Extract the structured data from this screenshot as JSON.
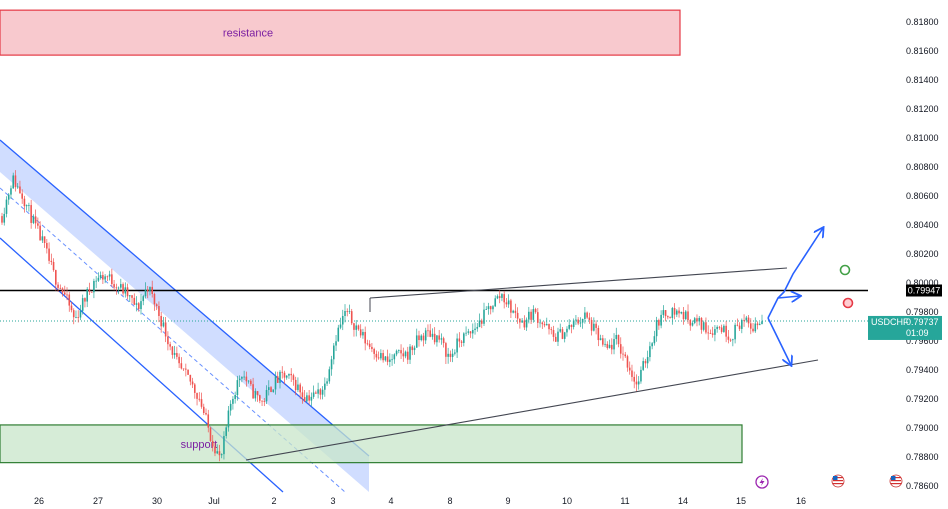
{
  "chart_data": {
    "type": "candlestick",
    "symbol": "USDCHF",
    "current_price": "0.79737",
    "countdown": "01:09",
    "key_level": "0.79947",
    "y_ticks": [
      "0.81800",
      "0.81600",
      "0.81400",
      "0.81200",
      "0.81000",
      "0.80800",
      "0.80600",
      "0.80400",
      "0.80200",
      "0.80000",
      "0.79800",
      "0.79600",
      "0.79400",
      "0.79200",
      "0.79000",
      "0.78800",
      "0.78600"
    ],
    "x_ticks": [
      "26",
      "27",
      "30",
      "Jul",
      "2",
      "3",
      "4",
      "8",
      "9",
      "10",
      "11",
      "14",
      "15",
      "16"
    ],
    "ylim": [
      0.7853,
      0.8195
    ],
    "zones": [
      {
        "label": "resistance",
        "low": 0.8157,
        "high": 0.8188,
        "color": "#f5c2c7"
      },
      {
        "label": "support",
        "low": 0.7876,
        "high": 0.7902,
        "color": "#c8e6c9"
      }
    ],
    "close_path": [
      0.8046,
      0.8072,
      0.806,
      0.8042,
      0.8026,
      0.8005,
      0.7992,
      0.7974,
      0.799,
      0.8003,
      0.8005,
      0.7999,
      0.7992,
      0.7982,
      0.7998,
      0.798,
      0.796,
      0.7941,
      0.7933,
      0.792,
      0.7895,
      0.7877,
      0.7918,
      0.7939,
      0.7925,
      0.7918,
      0.793,
      0.7936,
      0.7932,
      0.7922,
      0.7922,
      0.7929,
      0.7962,
      0.798,
      0.797,
      0.7959,
      0.7952,
      0.7945,
      0.795,
      0.7951,
      0.7961,
      0.7966,
      0.7961,
      0.7948,
      0.7961,
      0.7965,
      0.7974,
      0.7985,
      0.7992,
      0.7981,
      0.7972,
      0.798,
      0.7972,
      0.7962,
      0.7966,
      0.7972,
      0.7977,
      0.7966,
      0.7953,
      0.796,
      0.7946,
      0.7929,
      0.7951,
      0.7974,
      0.798,
      0.798,
      0.7975,
      0.7972,
      0.7967,
      0.797,
      0.7963,
      0.7974,
      0.7969,
      0.7974
    ],
    "color_up": "#26a69a",
    "color_down": "#ef5350",
    "markers": [
      "lightning-icon",
      "us-flag-icon",
      "us-flag-icon"
    ]
  }
}
